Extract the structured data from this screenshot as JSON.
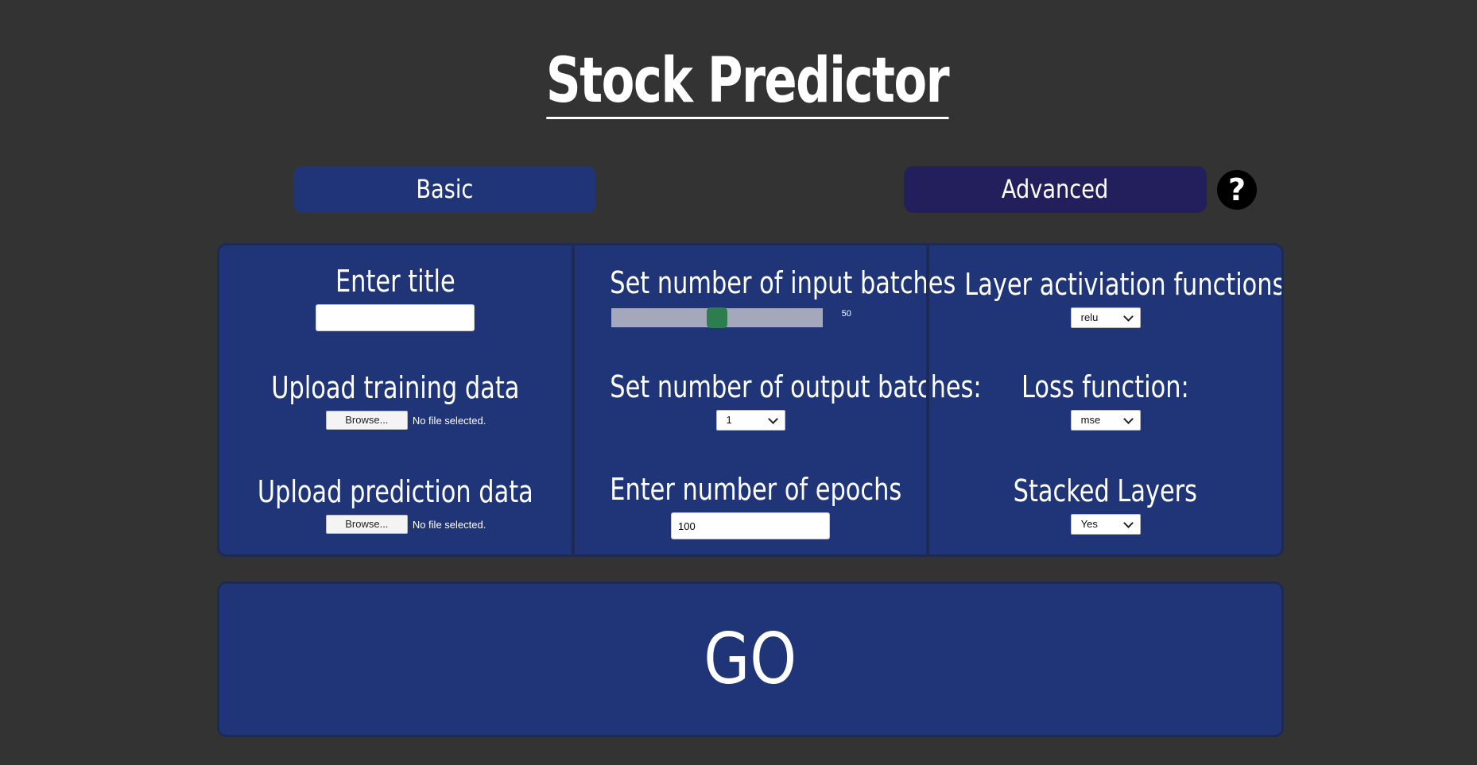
{
  "header": {
    "title": "Stock Predictor"
  },
  "modes": {
    "basic_label": "Basic",
    "advanced_label": "Advanced",
    "help_icon": "question-mark-icon",
    "help_glyph": "?"
  },
  "left_column": {
    "title_label": "Enter title",
    "title_value": "",
    "training_label": "Upload training data",
    "training_browse": "Browse...",
    "training_status": "No file selected.",
    "prediction_label": "Upload prediction data",
    "prediction_browse": "Browse...",
    "prediction_status": "No file selected."
  },
  "middle_column": {
    "input_batches_label": "Set number of input batches",
    "input_batches_value": "50",
    "input_batches_fraction": 0.5,
    "output_batches_label": "Set number of output batches:",
    "output_batches_selected": "1",
    "epochs_label": "Enter number of epochs",
    "epochs_value": "100"
  },
  "right_column": {
    "activation_label": "Layer activiation functions",
    "activation_selected": "relu",
    "loss_label": "Loss function:",
    "loss_selected": "mse",
    "stacked_label": "Stacked Layers",
    "stacked_selected": "Yes"
  },
  "go_button": {
    "label": "GO"
  },
  "colors": {
    "background": "#333333",
    "panel": "#203578",
    "advanced_button": "#221f5c",
    "slider_thumb": "#2e7d4f",
    "slider_track": "#a3a8bd"
  }
}
